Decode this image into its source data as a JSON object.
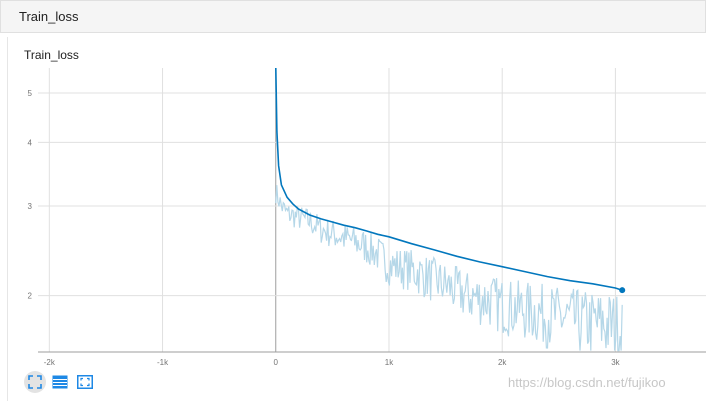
{
  "header": {
    "title": "Train_loss"
  },
  "card": {
    "title": "Train_loss"
  },
  "toolbar": {
    "buttons": [
      {
        "icon": "fit-domain-icon",
        "active": true
      },
      {
        "icon": "data-table-icon",
        "active": false
      },
      {
        "icon": "toggle-fullscreen-icon",
        "active": false
      }
    ]
  },
  "watermark": "https://blog.csdn.net/fujikoo",
  "chart_data": {
    "type": "line",
    "title": "Train_loss",
    "xlabel": "",
    "ylabel": "",
    "x_ticks": [
      -2000,
      -1000,
      0,
      1000,
      2000,
      3000
    ],
    "x_tick_labels": [
      "-2k",
      "-1k",
      "0",
      "1k",
      "2k",
      "3k"
    ],
    "y_ticks": [
      2,
      3,
      4,
      5
    ],
    "y_tick_labels": [
      "2",
      "3",
      "4",
      "5"
    ],
    "xlim": [
      -2100,
      3800
    ],
    "ylim": [
      1.55,
      5.6
    ],
    "y_scale": "log",
    "grid": true,
    "colors": {
      "smoothed": "#0277bd",
      "raw": "#b5d7e8",
      "axis": "#9e9e9e",
      "grid": "#e0e0e0"
    },
    "series": [
      {
        "style": "smoothed",
        "x": [
          0,
          10,
          25,
          50,
          100,
          150,
          200,
          300,
          400,
          500,
          600,
          700,
          800,
          900,
          1000,
          1200,
          1400,
          1600,
          1800,
          2000,
          2200,
          2400,
          2600,
          2800,
          3000,
          3060
        ],
        "y": [
          5.6,
          4.2,
          3.6,
          3.3,
          3.12,
          3.03,
          2.96,
          2.88,
          2.83,
          2.79,
          2.75,
          2.72,
          2.68,
          2.64,
          2.61,
          2.53,
          2.46,
          2.39,
          2.33,
          2.28,
          2.23,
          2.18,
          2.14,
          2.11,
          2.07,
          2.05
        ]
      },
      {
        "style": "raw",
        "x": [
          0,
          50,
          100,
          200,
          300,
          400,
          500,
          600,
          700,
          800,
          900,
          1000,
          1100,
          1200,
          1300,
          1400,
          1500,
          1600,
          1700,
          1800,
          1900,
          2000,
          2100,
          2200,
          2300,
          2400,
          2500,
          2600,
          2700,
          2800,
          2900,
          3000,
          3050,
          3060
        ],
        "y": [
          3.2,
          3.0,
          2.9,
          2.85,
          2.8,
          2.7,
          2.65,
          2.6,
          2.55,
          2.5,
          2.42,
          2.3,
          2.28,
          2.25,
          2.2,
          2.15,
          2.1,
          2.05,
          2.0,
          1.98,
          1.96,
          1.92,
          1.9,
          1.88,
          1.86,
          1.84,
          1.82,
          1.8,
          1.78,
          1.77,
          1.76,
          1.75,
          1.72,
          1.8
        ]
      }
    ]
  }
}
